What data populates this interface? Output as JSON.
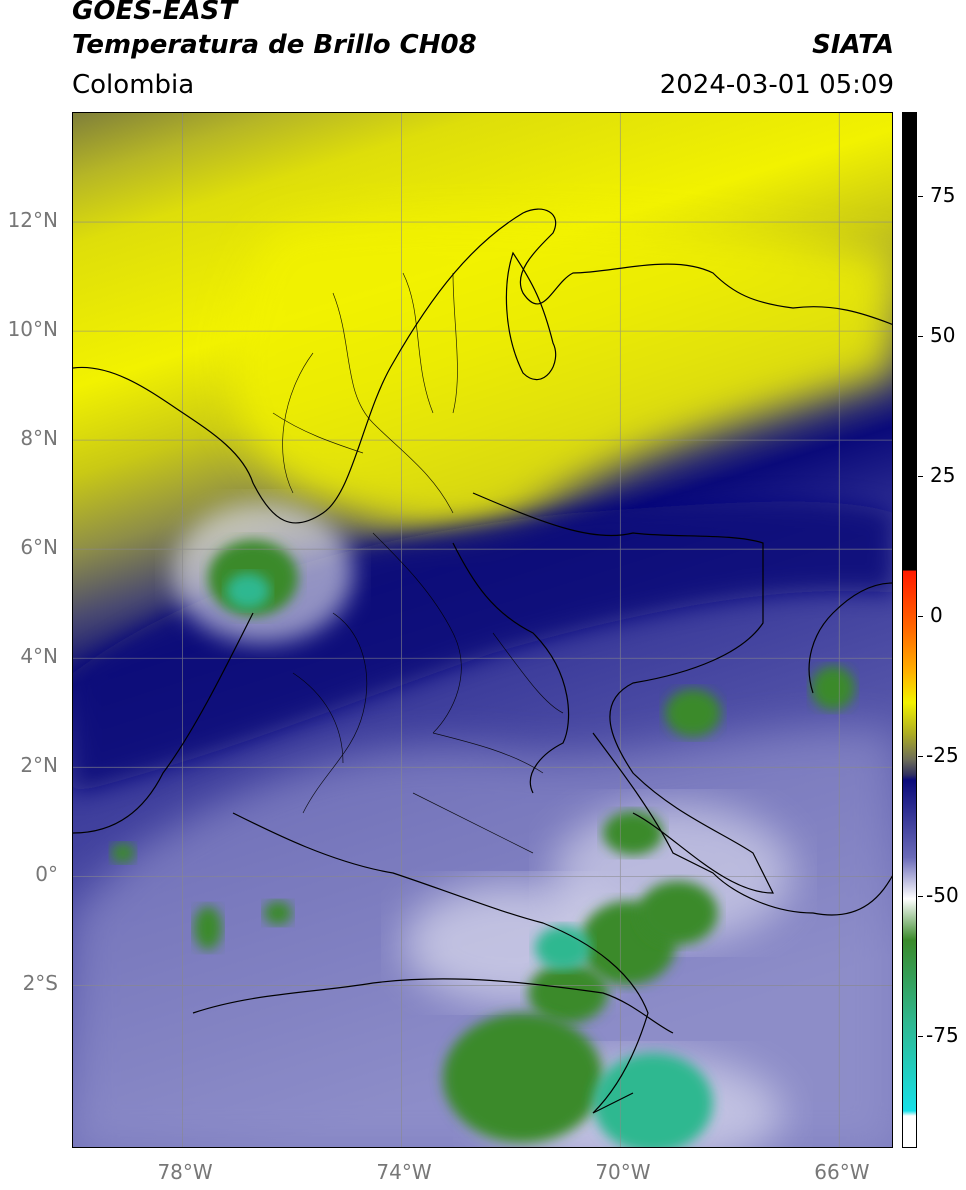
{
  "header": {
    "title_line1": "GOES-EAST",
    "title_line2": "Temperatura de Brillo CH08",
    "source": "SIATA",
    "region": "Colombia",
    "datetime": "2024-03-01 05:09"
  },
  "axes": {
    "lat_ticks": [
      {
        "label": "12°N",
        "value": 12
      },
      {
        "label": "10°N",
        "value": 10
      },
      {
        "label": "8°N",
        "value": 8
      },
      {
        "label": "6°N",
        "value": 6
      },
      {
        "label": "4°N",
        "value": 4
      },
      {
        "label": "2°N",
        "value": 2
      },
      {
        "label": "0°",
        "value": 0
      },
      {
        "label": "2°S",
        "value": -2
      }
    ],
    "lon_ticks": [
      {
        "label": "78°W",
        "value": -78
      },
      {
        "label": "74°W",
        "value": -74
      },
      {
        "label": "70°W",
        "value": -70
      },
      {
        "label": "66°W",
        "value": -66
      }
    ],
    "lat_range": [
      -5,
      14
    ],
    "lon_range": [
      -80,
      -65
    ],
    "grid": true
  },
  "colorbar": {
    "ticks": [
      {
        "label": "75",
        "value": 75
      },
      {
        "label": "50",
        "value": 50
      },
      {
        "label": "25",
        "value": 25
      },
      {
        "label": "0",
        "value": 0
      },
      {
        "label": "-25",
        "value": -25
      },
      {
        "label": "-50",
        "value": -50
      },
      {
        "label": "-75",
        "value": -75
      }
    ],
    "range": [
      -95,
      90
    ],
    "colors": {
      "cyan": "#16e0e8",
      "teal": "#2fb890",
      "green": "#3a8a2a",
      "white": "#ffffff",
      "lavender": "#aaa8d8",
      "navy": "#0a0a7a",
      "gray": "#6e6e58",
      "olive": "#aeae22",
      "yellow": "#f2f200",
      "orange": "#ff9a00",
      "red": "#ff1a00",
      "black": "#000000"
    }
  }
}
